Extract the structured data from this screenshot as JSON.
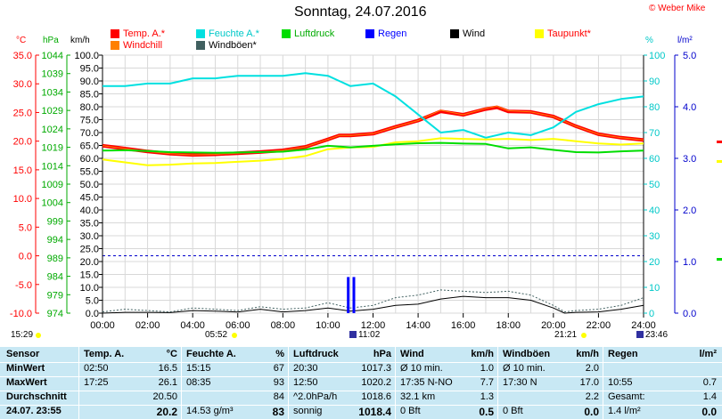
{
  "header": {
    "title": "Sonntag, 24.07.2016",
    "copyright": "© Weber Mike"
  },
  "units": {
    "temp": "°C",
    "press": "hPa",
    "wind": "km/h",
    "hum": "%",
    "rain": "l/m²"
  },
  "legend": [
    {
      "label": "Temp. A.*",
      "color": "#ff0000",
      "text_color": "#ff0000"
    },
    {
      "label": "Feuchte A.*",
      "color": "#00e0e0",
      "text_color": "#00c8c8"
    },
    {
      "label": "Luftdruck",
      "color": "#00dd00",
      "text_color": "#00aa00"
    },
    {
      "label": "Regen",
      "color": "#0000ff",
      "text_color": "#0000ff"
    },
    {
      "label": "Wind",
      "color": "#000000",
      "text_color": "#000000"
    },
    {
      "label": "Taupunkt*",
      "color": "#ffff00",
      "text_color": "#ff0000"
    },
    {
      "label": "Windchill",
      "color": "#ff8000",
      "text_color": "#ff0000"
    },
    {
      "label": "Windböen*",
      "color": "#406060",
      "text_color": "#000000"
    }
  ],
  "markers": {
    "sunrise_time": "05:52",
    "sunset_time": "21:21",
    "time_left": "15:29",
    "time_min_temp": "11:02",
    "time_right": "23:46"
  },
  "chart_data": {
    "type": "line",
    "x_label_ticks": [
      "00:00",
      "02:00",
      "04:00",
      "06:00",
      "08:00",
      "10:00",
      "12:00",
      "14:00",
      "16:00",
      "18:00",
      "20:00",
      "22:00",
      "24:00"
    ],
    "xlim": [
      0,
      24
    ],
    "axes": {
      "temp": {
        "label": "°C",
        "ticks": [
          "35.0",
          "30.0",
          "25.0",
          "20.0",
          "15.0",
          "10.0",
          "5.0",
          "0.0",
          "-5.0",
          "-10.0"
        ],
        "range": [
          -10,
          35
        ]
      },
      "press": {
        "label": "hPa",
        "ticks": [
          "1044",
          "1039",
          "1034",
          "1029",
          "1024",
          "1019",
          "1014",
          "1009",
          "1004",
          "999",
          "994",
          "989",
          "984",
          "979",
          "974"
        ],
        "range": [
          974,
          1044
        ]
      },
      "wind": {
        "label": "km/h",
        "ticks": [
          "100.0",
          "95.0",
          "90.0",
          "85.0",
          "80.0",
          "75.0",
          "70.0",
          "65.0",
          "60.0",
          "55.0",
          "50.0",
          "45.0",
          "40.0",
          "35.0",
          "30.0",
          "25.0",
          "20.0",
          "15.0",
          "10.0",
          "5.0",
          "0.0"
        ],
        "range": [
          0,
          100
        ]
      },
      "hum": {
        "label": "%",
        "ticks": [
          "100",
          "90",
          "80",
          "70",
          "60",
          "50",
          "40",
          "30",
          "20",
          "10",
          "0"
        ],
        "range": [
          0,
          100
        ]
      },
      "rain": {
        "label": "l/m²",
        "ticks": [
          "5.0",
          "4.0",
          "3.0",
          "2.0",
          "1.0",
          "0.0"
        ],
        "range": [
          0,
          5
        ]
      }
    },
    "series": [
      {
        "name": "Temp. A.*",
        "axis": "temp",
        "color": "#ff0000",
        "width": 4,
        "x": [
          0,
          1,
          2,
          3,
          4,
          5,
          6,
          7,
          8,
          9,
          10,
          10.5,
          11,
          12,
          13,
          14,
          15,
          16,
          17,
          17.5,
          18,
          19,
          20,
          21,
          22,
          23,
          24
        ],
        "y": [
          19.2,
          18.7,
          18.2,
          17.8,
          17.6,
          17.7,
          17.9,
          18.1,
          18.4,
          19.0,
          20.3,
          21.0,
          21.0,
          21.3,
          22.5,
          23.6,
          25.2,
          24.6,
          25.6,
          25.9,
          25.2,
          25.1,
          24.3,
          22.6,
          21.2,
          20.6,
          20.2
        ]
      },
      {
        "name": "Windchill",
        "axis": "temp",
        "color": "#ff8000",
        "width": 1,
        "x": [
          0,
          1,
          2,
          3,
          4,
          5,
          6,
          7,
          8,
          9,
          10,
          10.5,
          11,
          12,
          13,
          14,
          15,
          16,
          17,
          17.5,
          18,
          19,
          20,
          21,
          22,
          23,
          24
        ],
        "y": [
          19.2,
          18.7,
          18.2,
          17.8,
          17.6,
          17.7,
          17.9,
          18.1,
          18.4,
          19.0,
          20.3,
          21.0,
          21.0,
          21.3,
          22.5,
          23.6,
          25.4,
          24.6,
          25.7,
          26.1,
          25.3,
          25.1,
          24.3,
          22.6,
          21.2,
          20.6,
          20.2
        ]
      },
      {
        "name": "Feuchte A.*",
        "axis": "hum",
        "color": "#00e0e0",
        "width": 2,
        "x": [
          0,
          1,
          2,
          3,
          4,
          5,
          6,
          7,
          8,
          9,
          10,
          11,
          12,
          13,
          14,
          15,
          16,
          17,
          18,
          19,
          20,
          21,
          22,
          23,
          24
        ],
        "y": [
          88,
          88,
          89,
          89,
          91,
          91,
          92,
          92,
          92,
          93,
          92,
          88,
          89,
          84,
          77,
          70,
          71,
          68,
          70,
          69,
          72,
          78,
          81,
          83,
          84
        ]
      },
      {
        "name": "Taupunkt*",
        "axis": "temp",
        "color": "#ffff00",
        "width": 2,
        "x": [
          0,
          1,
          2,
          3,
          4,
          5,
          6,
          7,
          8,
          9,
          10,
          11,
          12,
          13,
          14,
          15,
          16,
          17,
          18,
          19,
          20,
          21,
          22,
          23,
          24
        ],
        "y": [
          16.8,
          16.3,
          15.8,
          15.9,
          16.1,
          16.2,
          16.4,
          16.6,
          16.9,
          17.4,
          18.6,
          18.9,
          19.0,
          19.8,
          20.0,
          20.5,
          20.4,
          20.3,
          20.4,
          20.2,
          20.4,
          20.0,
          19.6,
          19.4,
          19.6
        ]
      },
      {
        "name": "Luftdruck",
        "axis": "press",
        "color": "#00dd00",
        "width": 2,
        "x": [
          0,
          1,
          2,
          3,
          4,
          5,
          6,
          7,
          8,
          9,
          10,
          11,
          12,
          13,
          14,
          15,
          16,
          17,
          18,
          19,
          20,
          21,
          22,
          23,
          24
        ],
        "y": [
          1018.1,
          1018.2,
          1018.0,
          1017.7,
          1017.6,
          1017.5,
          1017.6,
          1017.7,
          1017.8,
          1018.4,
          1019.4,
          1019.0,
          1019.4,
          1019.8,
          1020.1,
          1020.2,
          1020.0,
          1019.9,
          1018.7,
          1019.0,
          1018.3,
          1017.7,
          1017.6,
          1017.9,
          1018.1
        ]
      },
      {
        "name": "Wind",
        "axis": "wind",
        "color": "#000000",
        "width": 1,
        "x": [
          0,
          1,
          2,
          3,
          4,
          5,
          6,
          7,
          8,
          9,
          10,
          11,
          12,
          13,
          14,
          15,
          16,
          17,
          18,
          19,
          20,
          20.5,
          21,
          22,
          23,
          24
        ],
        "y": [
          0,
          0.3,
          0.3,
          0.2,
          1.0,
          0.8,
          0.4,
          1.5,
          0.5,
          1.0,
          2.0,
          0.8,
          1.5,
          3.0,
          3.5,
          5.5,
          6.5,
          6.0,
          6.0,
          5.0,
          2.0,
          0.0,
          0.3,
          0.5,
          1.5,
          3.0
        ]
      },
      {
        "name": "Windböen*",
        "axis": "wind",
        "color": "#406060",
        "width": 1,
        "dashed": true,
        "x": [
          0,
          1,
          2,
          3,
          4,
          5,
          6,
          7,
          8,
          9,
          10,
          11,
          12,
          13,
          14,
          15,
          16,
          17,
          18,
          19,
          20,
          20.5,
          21,
          22,
          23,
          24
        ],
        "y": [
          0.5,
          1.5,
          1.0,
          0.5,
          2.0,
          1.5,
          1.0,
          2.5,
          1.5,
          2.0,
          4.0,
          2.0,
          3.0,
          6.0,
          7.0,
          9.0,
          8.5,
          8.0,
          8.5,
          7.0,
          3.0,
          0.5,
          1.0,
          1.5,
          3.0,
          6.0
        ]
      },
      {
        "name": "Regen",
        "axis": "rain",
        "color": "#0000ff",
        "width": 3,
        "bars": true,
        "x": [
          10.9,
          11.15
        ],
        "y": [
          0.7,
          0.7
        ]
      }
    ],
    "zero_line_temp": 0.0
  },
  "table": {
    "row_labels": [
      "Sensor",
      "MinWert",
      "MaxWert",
      "Durchschnitt",
      "24.07. 23:55"
    ],
    "columns": [
      {
        "header": "Temp. A.",
        "unit": "°C",
        "rows": [
          [
            "02:50",
            "16.5"
          ],
          [
            "17:25",
            "26.1"
          ],
          [
            "",
            "20.50"
          ],
          [
            "",
            "20.2"
          ]
        ]
      },
      {
        "header": "Feuchte A.",
        "unit": "%",
        "rows": [
          [
            "15:15",
            "67"
          ],
          [
            "08:35",
            "93"
          ],
          [
            "",
            "84"
          ],
          [
            "14.53 g/m³",
            "83"
          ]
        ]
      },
      {
        "header": "Luftdruck",
        "unit": "hPa",
        "rows": [
          [
            "20:30",
            "1017.3"
          ],
          [
            "12:50",
            "1020.2"
          ],
          [
            "^2.0hPa/h",
            "1018.6"
          ],
          [
            "sonnig",
            "1018.4"
          ]
        ]
      },
      {
        "header": "Wind",
        "unit": "km/h",
        "rows": [
          [
            "Ø 10 min.",
            "1.0"
          ],
          [
            "17:35      N-NO",
            "7.7"
          ],
          [
            "32.1 km",
            "1.3"
          ],
          [
            "0 Bft",
            "0.5"
          ]
        ]
      },
      {
        "header": "Windböen",
        "unit": "km/h",
        "rows": [
          [
            "Ø 10 min.",
            "2.0"
          ],
          [
            "17:30         N",
            "17.0"
          ],
          [
            "",
            "2.2"
          ],
          [
            "0 Bft",
            "0.0"
          ]
        ]
      },
      {
        "header": "Regen",
        "unit": "l/m²",
        "rows": [
          [
            "",
            ""
          ],
          [
            "10:55",
            "0.7"
          ],
          [
            "Gesamt:",
            "1.4"
          ],
          [
            "1.4 l/m²",
            "0.0"
          ]
        ]
      }
    ]
  }
}
